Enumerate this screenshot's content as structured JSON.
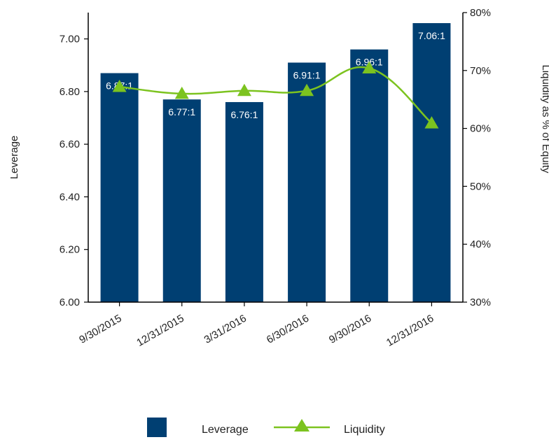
{
  "chart_data": {
    "type": "bar",
    "categories": [
      "9/30/2015",
      "12/31/2015",
      "3/31/2016",
      "6/30/2016",
      "9/30/2016",
      "12/31/2016"
    ],
    "series": [
      {
        "name": "Leverage",
        "type": "bar",
        "axis": "left",
        "values": [
          6.87,
          6.77,
          6.76,
          6.91,
          6.96,
          7.06
        ],
        "data_labels": [
          "6.87:1",
          "6.77:1",
          "6.76:1",
          "6.91:1",
          "6.96:1",
          "7.06:1"
        ],
        "color": "#003f72"
      },
      {
        "name": "Liquidity",
        "type": "line",
        "axis": "right",
        "values": [
          67.2,
          66.0,
          66.5,
          66.5,
          70.4,
          60.9
        ],
        "color": "#7cc31f",
        "marker": "triangle"
      }
    ],
    "ylabel": "Leverage",
    "ylabel_right": "Liquidity as % of Equity",
    "ylim": [
      6.0,
      7.1
    ],
    "ylim_right": [
      30,
      80
    ],
    "yticks": [
      "6.00",
      "6.20",
      "6.40",
      "6.60",
      "6.80",
      "7.00"
    ],
    "yticks_right": [
      "30%",
      "40%",
      "50%",
      "60%",
      "70%",
      "80%"
    ],
    "legend_position": "bottom",
    "grid": false
  }
}
